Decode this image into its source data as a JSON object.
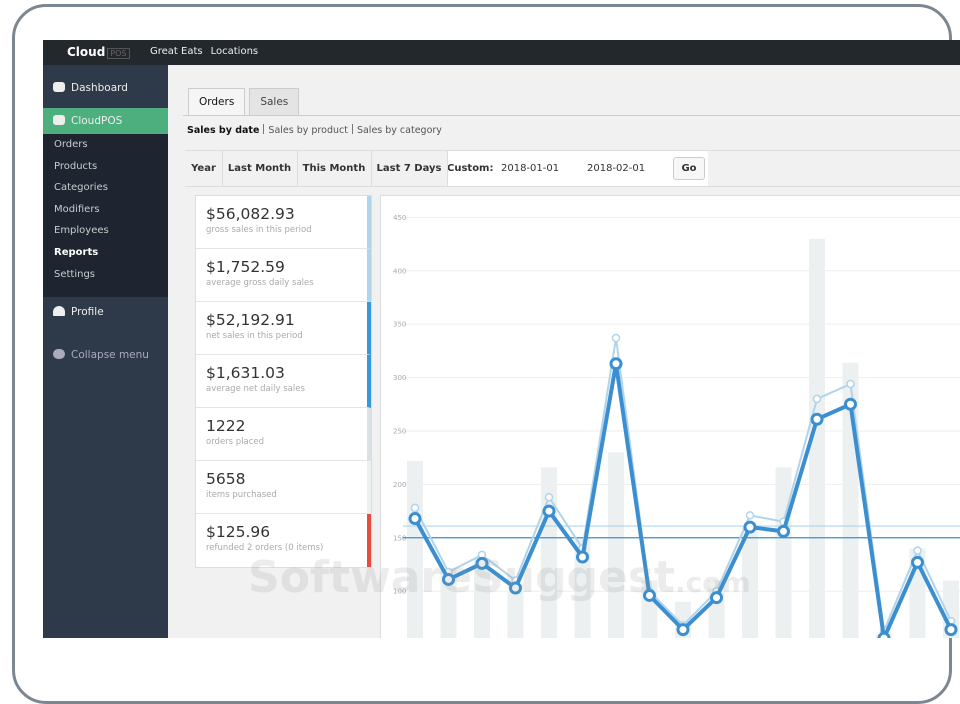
{
  "topbar": {
    "logo": "Cloud",
    "logo_badge": "POS",
    "links": [
      "Great Eats",
      "Locations"
    ]
  },
  "sidebar": {
    "items": [
      "Dashboard",
      "CloudPOS"
    ],
    "submenu": [
      "Orders",
      "Products",
      "Categories",
      "Modifiers",
      "Employees",
      "Reports",
      "Settings"
    ],
    "submenu_active": 5,
    "profile": "Profile",
    "collapse": "Collapse menu"
  },
  "tabs": [
    "Orders",
    "Sales"
  ],
  "subnav": [
    "Sales by date",
    "Sales by product",
    "Sales by category"
  ],
  "ranges": [
    "Year",
    "Last Month",
    "This Month",
    "Last 7 Days"
  ],
  "custom": {
    "label": "Custom:",
    "from": "2018-01-01",
    "to": "2018-02-01",
    "button": "Go"
  },
  "stats": [
    {
      "value": "$56,082.93",
      "label": "gross sales in this period",
      "color": "#b1d4ea"
    },
    {
      "value": "$1,752.59",
      "label": "average gross daily sales",
      "color": "#b1d4ea"
    },
    {
      "value": "$52,192.91",
      "label": "net sales in this period",
      "color": "#3498db"
    },
    {
      "value": "$1,631.03",
      "label": "average net daily sales",
      "color": "#3498db"
    },
    {
      "value": "1222",
      "label": "orders placed",
      "color": "#dbe1e3"
    },
    {
      "value": "5658",
      "label": "items purchased",
      "color": "#ecf0f1"
    },
    {
      "value": "$125.96",
      "label": "refunded 2 orders (0 items)",
      "color": "#e74c3c"
    }
  ],
  "watermark": {
    "name": "SoftwareSuggest",
    "suffix": ".com"
  },
  "chart_data": {
    "type": "line",
    "ylim": [
      0,
      470
    ],
    "yticks": [
      100,
      150,
      200,
      250,
      300,
      350,
      400,
      450
    ],
    "grid": true,
    "series": [
      {
        "kind": "bar",
        "color": "#ecf0f1",
        "values": [
          222,
          120,
          130,
          100,
          216,
          150,
          230,
          110,
          90,
          110,
          160,
          216,
          430,
          314,
          60,
          140,
          110
        ]
      },
      {
        "kind": "line",
        "color": "#b1d4ea",
        "values": [
          178,
          118,
          134,
          110,
          188,
          140,
          337,
          100,
          68,
          100,
          171,
          165,
          280,
          294,
          63,
          138,
          72
        ]
      },
      {
        "kind": "line",
        "color": "#3b8fd0",
        "values": [
          168,
          111,
          126,
          103,
          175,
          132,
          313,
          96,
          64,
          94,
          160,
          156,
          261,
          275,
          56,
          127,
          64
        ]
      }
    ],
    "averages": [
      {
        "color": "#b1d4ea",
        "value": 161
      },
      {
        "color": "#3b8fd0",
        "value": 150
      }
    ]
  }
}
